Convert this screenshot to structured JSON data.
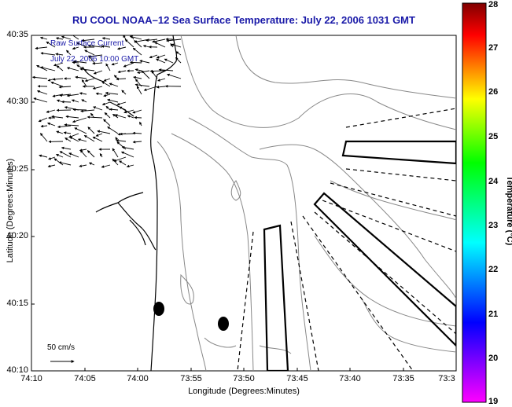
{
  "title": "RU COOL  NOAA–12  Sea Surface Temperature:  July 22, 2006 1031 GMT",
  "axes": {
    "ylabel": "Latitude (Degrees:Minutes)",
    "xlabel": "Longitude (Degrees:Minutes)",
    "yticks": [
      "40:35",
      "40:30",
      "40:25",
      "40:20",
      "40:15",
      "40:10"
    ],
    "xticks": [
      "74:10",
      "74:05",
      "74:00",
      "73:55",
      "73:50",
      "73:45",
      "73:40",
      "73:35",
      "73:3"
    ]
  },
  "legend": {
    "line1": "Raw Surface Current",
    "line2": "July 22, 2006 10:00 GMT"
  },
  "scale": {
    "label": "50 cm/s"
  },
  "colorbar": {
    "title": "Temperature (°C)",
    "ticks": [
      "28",
      "27",
      "26",
      "25",
      "24",
      "23",
      "22",
      "21",
      "20",
      "19"
    ],
    "colors": [
      "#ff00ff",
      "#8000ff",
      "#0000ff",
      "#0080ff",
      "#00ffff",
      "#00ff80",
      "#00ff00",
      "#80ff00",
      "#ffff00",
      "#ff8000",
      "#ff0000",
      "#800000"
    ]
  }
}
